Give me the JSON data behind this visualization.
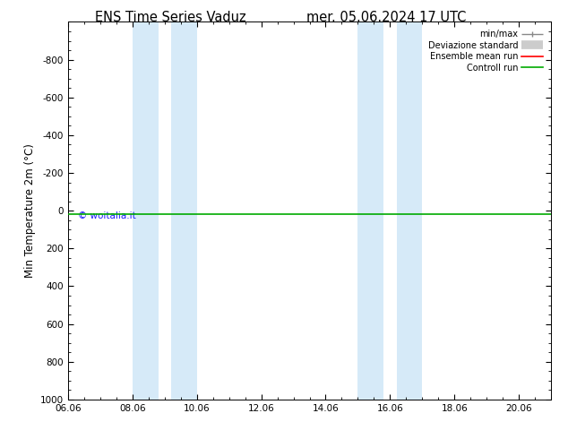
{
  "title_left": "ENS Time Series Vaduz",
  "title_right": "mer. 05.06.2024 17 UTC",
  "ylabel": "Min Temperature 2m (°C)",
  "ylim_bottom": -1000,
  "ylim_top": 1000,
  "xlim": [
    0.0,
    15.0
  ],
  "xtick_labels": [
    "06.06",
    "08.06",
    "10.06",
    "12.06",
    "14.06",
    "16.06",
    "18.06",
    "20.06"
  ],
  "xtick_positions": [
    0.0,
    2.0,
    4.0,
    6.0,
    8.0,
    10.0,
    12.0,
    14.0
  ],
  "ytick_positions": [
    -800,
    -600,
    -400,
    -200,
    0,
    200,
    400,
    600,
    800,
    1000
  ],
  "ytick_labels": [
    "-800",
    "-600",
    "-400",
    "-200",
    "0",
    "200",
    "400",
    "600",
    "800",
    "1000"
  ],
  "shaded_bands": [
    {
      "xmin": 2.0,
      "xmax": 2.8
    },
    {
      "xmin": 3.2,
      "xmax": 4.0
    },
    {
      "xmin": 9.0,
      "xmax": 9.8
    },
    {
      "xmin": 10.2,
      "xmax": 11.0
    }
  ],
  "band_color": "#d6eaf8",
  "flat_line_y": 20,
  "green_line_color": "#00aa00",
  "red_line_color": "#ff0000",
  "watermark": "© woitalia.it",
  "watermark_color": "#1a1aff",
  "legend_items": [
    {
      "label": "min/max",
      "color": "#888888",
      "lw": 1.0
    },
    {
      "label": "Deviazione standard",
      "color": "#cccccc",
      "lw": 7
    },
    {
      "label": "Ensemble mean run",
      "color": "#ff0000",
      "lw": 1.2
    },
    {
      "label": "Controll run",
      "color": "#00aa00",
      "lw": 1.2
    }
  ],
  "background_color": "#ffffff",
  "title_fontsize": 10.5,
  "tick_fontsize": 7.5,
  "ylabel_fontsize": 8.5
}
